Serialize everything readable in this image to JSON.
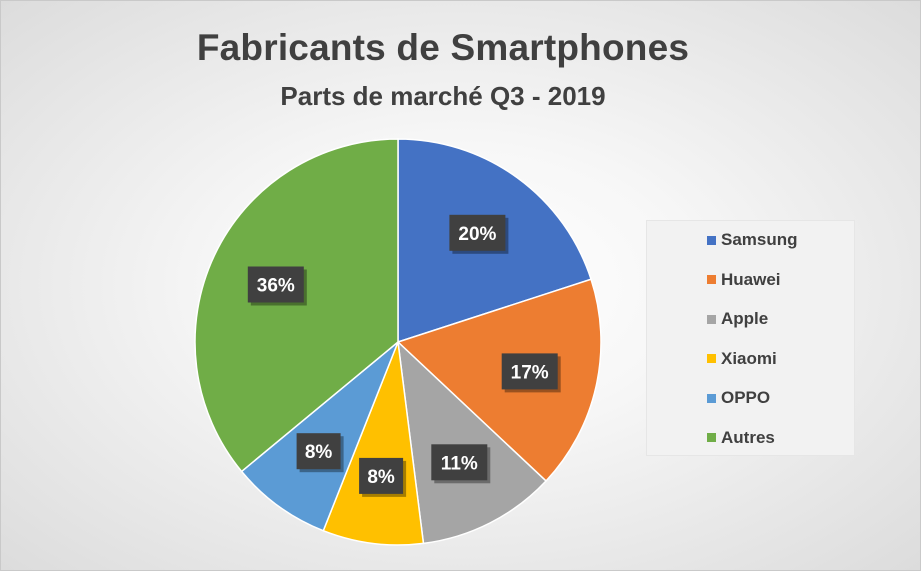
{
  "chart_data": {
    "type": "pie",
    "title": "Fabricants de Smartphones",
    "subtitle": "Parts de marché Q3 - 2019",
    "series": [
      {
        "name": "Samsung",
        "value": 20,
        "label": "20%",
        "color": "#4472C4"
      },
      {
        "name": "Huawei",
        "value": 17,
        "label": "17%",
        "color": "#ED7D31"
      },
      {
        "name": "Apple",
        "value": 11,
        "label": "11%",
        "color": "#A5A5A5"
      },
      {
        "name": "Xiaomi",
        "value": 8,
        "label": "8%",
        "color": "#FFC000"
      },
      {
        "name": "OPPO",
        "value": 8,
        "label": "8%",
        "color": "#5B9BD5"
      },
      {
        "name": "Autres",
        "value": 36,
        "label": "36%",
        "color": "#70AD47"
      }
    ],
    "start_angle_deg": 0,
    "direction": "clockwise",
    "legend_position": "right",
    "data_label_style": "dark box, white bold text"
  }
}
